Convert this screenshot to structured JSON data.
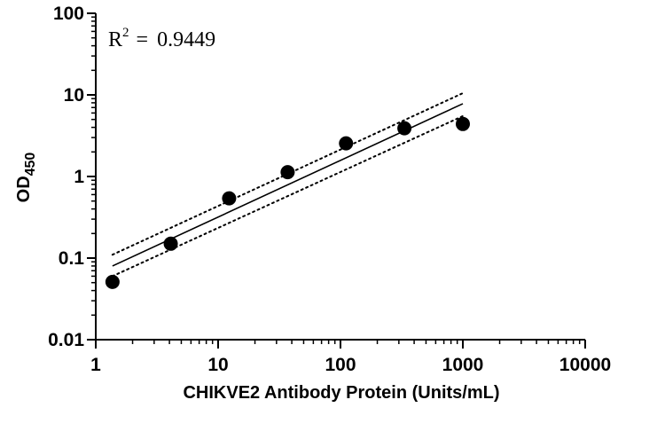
{
  "chart_data": {
    "type": "scatter",
    "title": "",
    "xlabel": "CHIKVE2 Antibody Protein (Units/mL)",
    "ylabel": "OD",
    "ylabel_subscript": "450",
    "x_scale": "log",
    "y_scale": "log",
    "xlim": [
      1,
      10000
    ],
    "ylim": [
      0.01,
      100
    ],
    "x_ticks": [
      {
        "value": 1,
        "label": "1"
      },
      {
        "value": 10,
        "label": "10"
      },
      {
        "value": 100,
        "label": "100"
      },
      {
        "value": 1000,
        "label": "1000"
      },
      {
        "value": 10000,
        "label": "10000"
      }
    ],
    "y_ticks": [
      {
        "value": 0.01,
        "label": "0.01"
      },
      {
        "value": 0.1,
        "label": "0.1"
      },
      {
        "value": 1,
        "label": "1"
      },
      {
        "value": 10,
        "label": "10"
      },
      {
        "value": 100,
        "label": "100"
      }
    ],
    "points": [
      {
        "x": 1.37,
        "y": 0.051
      },
      {
        "x": 4.1,
        "y": 0.15
      },
      {
        "x": 12.3,
        "y": 0.54
      },
      {
        "x": 37,
        "y": 1.13
      },
      {
        "x": 111,
        "y": 2.55
      },
      {
        "x": 333,
        "y": 3.9
      },
      {
        "x": 1000,
        "y": 4.4
      }
    ],
    "fit_line": {
      "x": [
        1.37,
        1000
      ],
      "y": [
        0.08,
        7.8
      ]
    },
    "confidence_upper": {
      "x": [
        1.37,
        1000
      ],
      "y": [
        0.11,
        10.5
      ]
    },
    "confidence_lower": {
      "x": [
        1.37,
        1000
      ],
      "y": [
        0.06,
        5.5
      ]
    },
    "annotation": {
      "label": "R",
      "superscript": "2",
      "equals": "=",
      "value": "0.9449"
    },
    "grid": false,
    "colors": {
      "points": "#000000",
      "lines": "#000000"
    }
  }
}
